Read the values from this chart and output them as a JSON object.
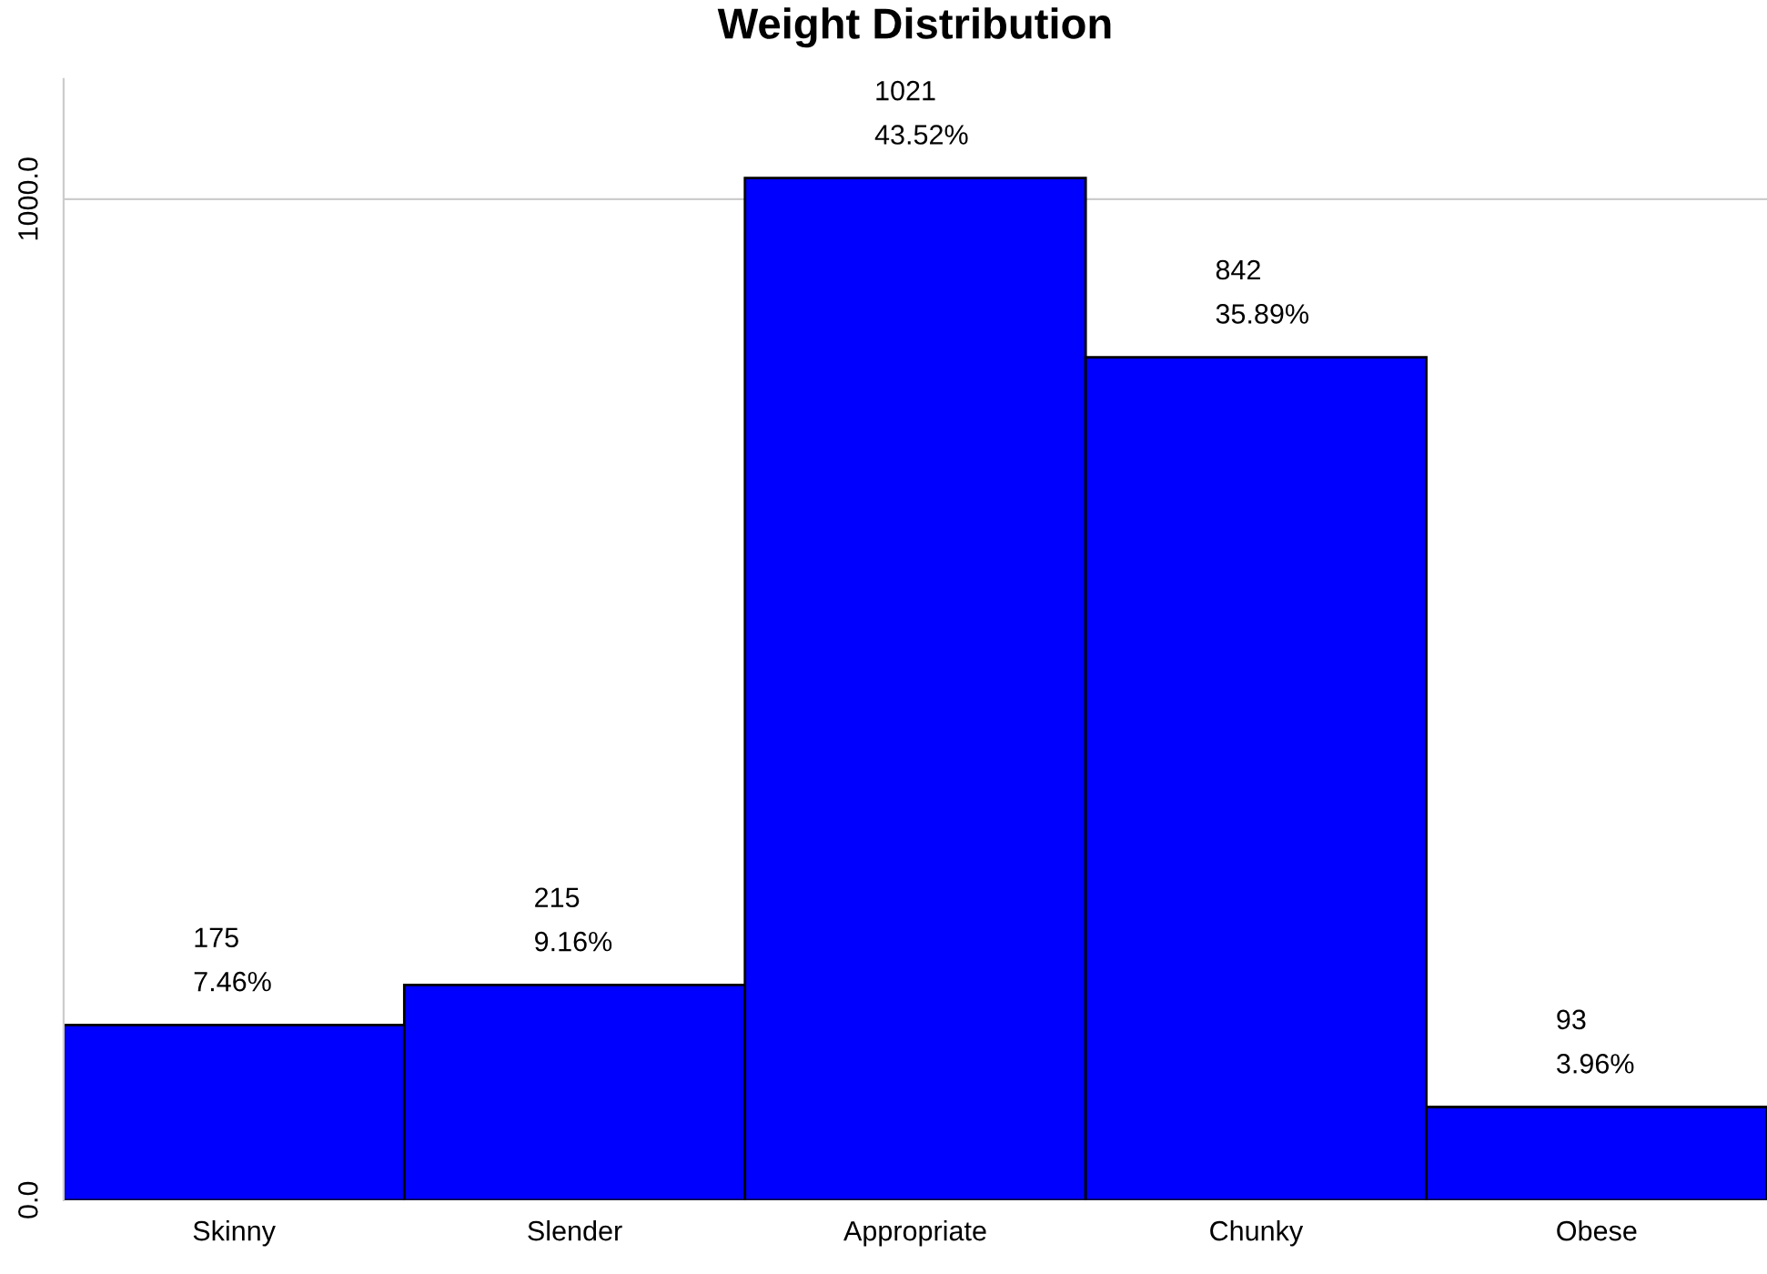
{
  "chart_data": {
    "type": "bar",
    "title": "Weight Distribution",
    "categories": [
      "Skinny",
      "Slender",
      "Appropriate",
      "Chunky",
      "Obese"
    ],
    "values": [
      175,
      215,
      1021,
      842,
      93
    ],
    "value_labels": [
      "175\n7.46%",
      "215\n9.16%",
      "1021\n43.52%",
      "842\n35.89%",
      "93\n3.96%"
    ],
    "color": "#0000ff",
    "ylim": [
      0,
      1120
    ],
    "yticks": [
      {
        "value": 0,
        "label": "0.0"
      },
      {
        "value": 1000,
        "label": "1000.0"
      }
    ],
    "grid": "y",
    "legend": false
  }
}
